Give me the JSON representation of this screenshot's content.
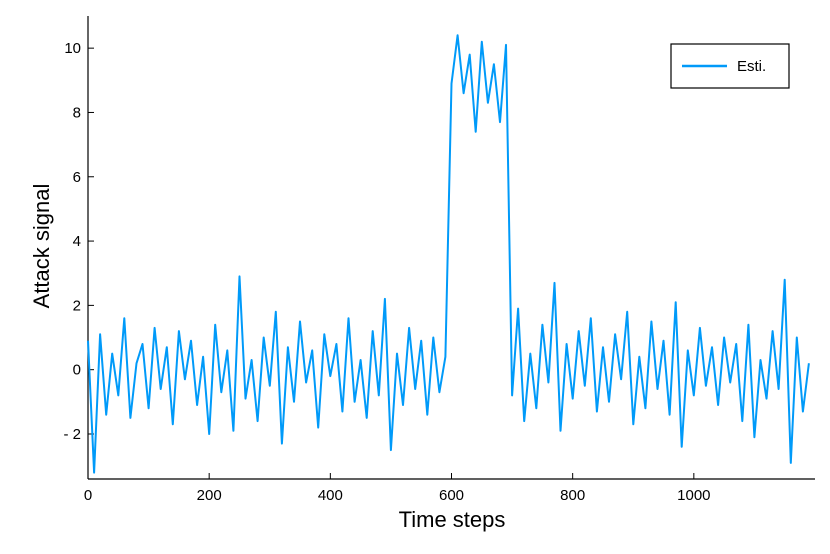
{
  "chart_data": {
    "type": "line",
    "xlabel": "Time steps",
    "ylabel": "Attack signal",
    "xlim": [
      0,
      1200
    ],
    "ylim": [
      -3.4,
      11
    ],
    "xticks": [
      0,
      200,
      400,
      600,
      800,
      1000
    ],
    "xtick_labels": [
      "0",
      "200",
      "400",
      "600",
      "800",
      "1000"
    ],
    "yticks": [
      -2,
      0,
      2,
      4,
      6,
      8,
      10
    ],
    "ytick_labels": [
      "- 2",
      "0",
      "2",
      "4",
      "6",
      "8",
      "10"
    ],
    "grid": false,
    "legend_position": "top-right",
    "series": [
      {
        "name": "Esti.",
        "color": "#009AF9",
        "x_start": 0,
        "x_step": 10,
        "values": [
          0.9,
          -3.2,
          1.1,
          -1.4,
          0.5,
          -0.8,
          1.6,
          -1.5,
          0.2,
          0.8,
          -1.2,
          1.3,
          -0.6,
          0.7,
          -1.7,
          1.2,
          -0.3,
          0.9,
          -1.1,
          0.4,
          -2.0,
          1.4,
          -0.7,
          0.6,
          -1.9,
          2.9,
          -0.9,
          0.3,
          -1.6,
          1.0,
          -0.5,
          1.8,
          -2.3,
          0.7,
          -1.0,
          1.5,
          -0.4,
          0.6,
          -1.8,
          1.1,
          -0.2,
          0.8,
          -1.3,
          1.6,
          -1.0,
          0.3,
          -1.5,
          1.2,
          -0.8,
          2.2,
          -2.5,
          0.5,
          -1.1,
          1.3,
          -0.6,
          0.9,
          -1.4,
          1.0,
          -0.7,
          0.4,
          8.9,
          10.4,
          8.6,
          9.8,
          7.4,
          10.2,
          8.3,
          9.5,
          7.7,
          10.1,
          -0.8,
          1.9,
          -1.6,
          0.5,
          -1.2,
          1.4,
          -0.4,
          2.7,
          -1.9,
          0.8,
          -0.9,
          1.2,
          -0.5,
          1.6,
          -1.3,
          0.7,
          -1.0,
          1.1,
          -0.3,
          1.8,
          -1.7,
          0.4,
          -1.2,
          1.5,
          -0.6,
          0.9,
          -1.4,
          2.1,
          -2.4,
          0.6,
          -0.8,
          1.3,
          -0.5,
          0.7,
          -1.1,
          1.0,
          -0.4,
          0.8,
          -1.6,
          1.4,
          -2.1,
          0.3,
          -0.9,
          1.2,
          -0.6,
          2.8,
          -2.9,
          1.0,
          -1.3,
          0.2
        ]
      }
    ]
  }
}
